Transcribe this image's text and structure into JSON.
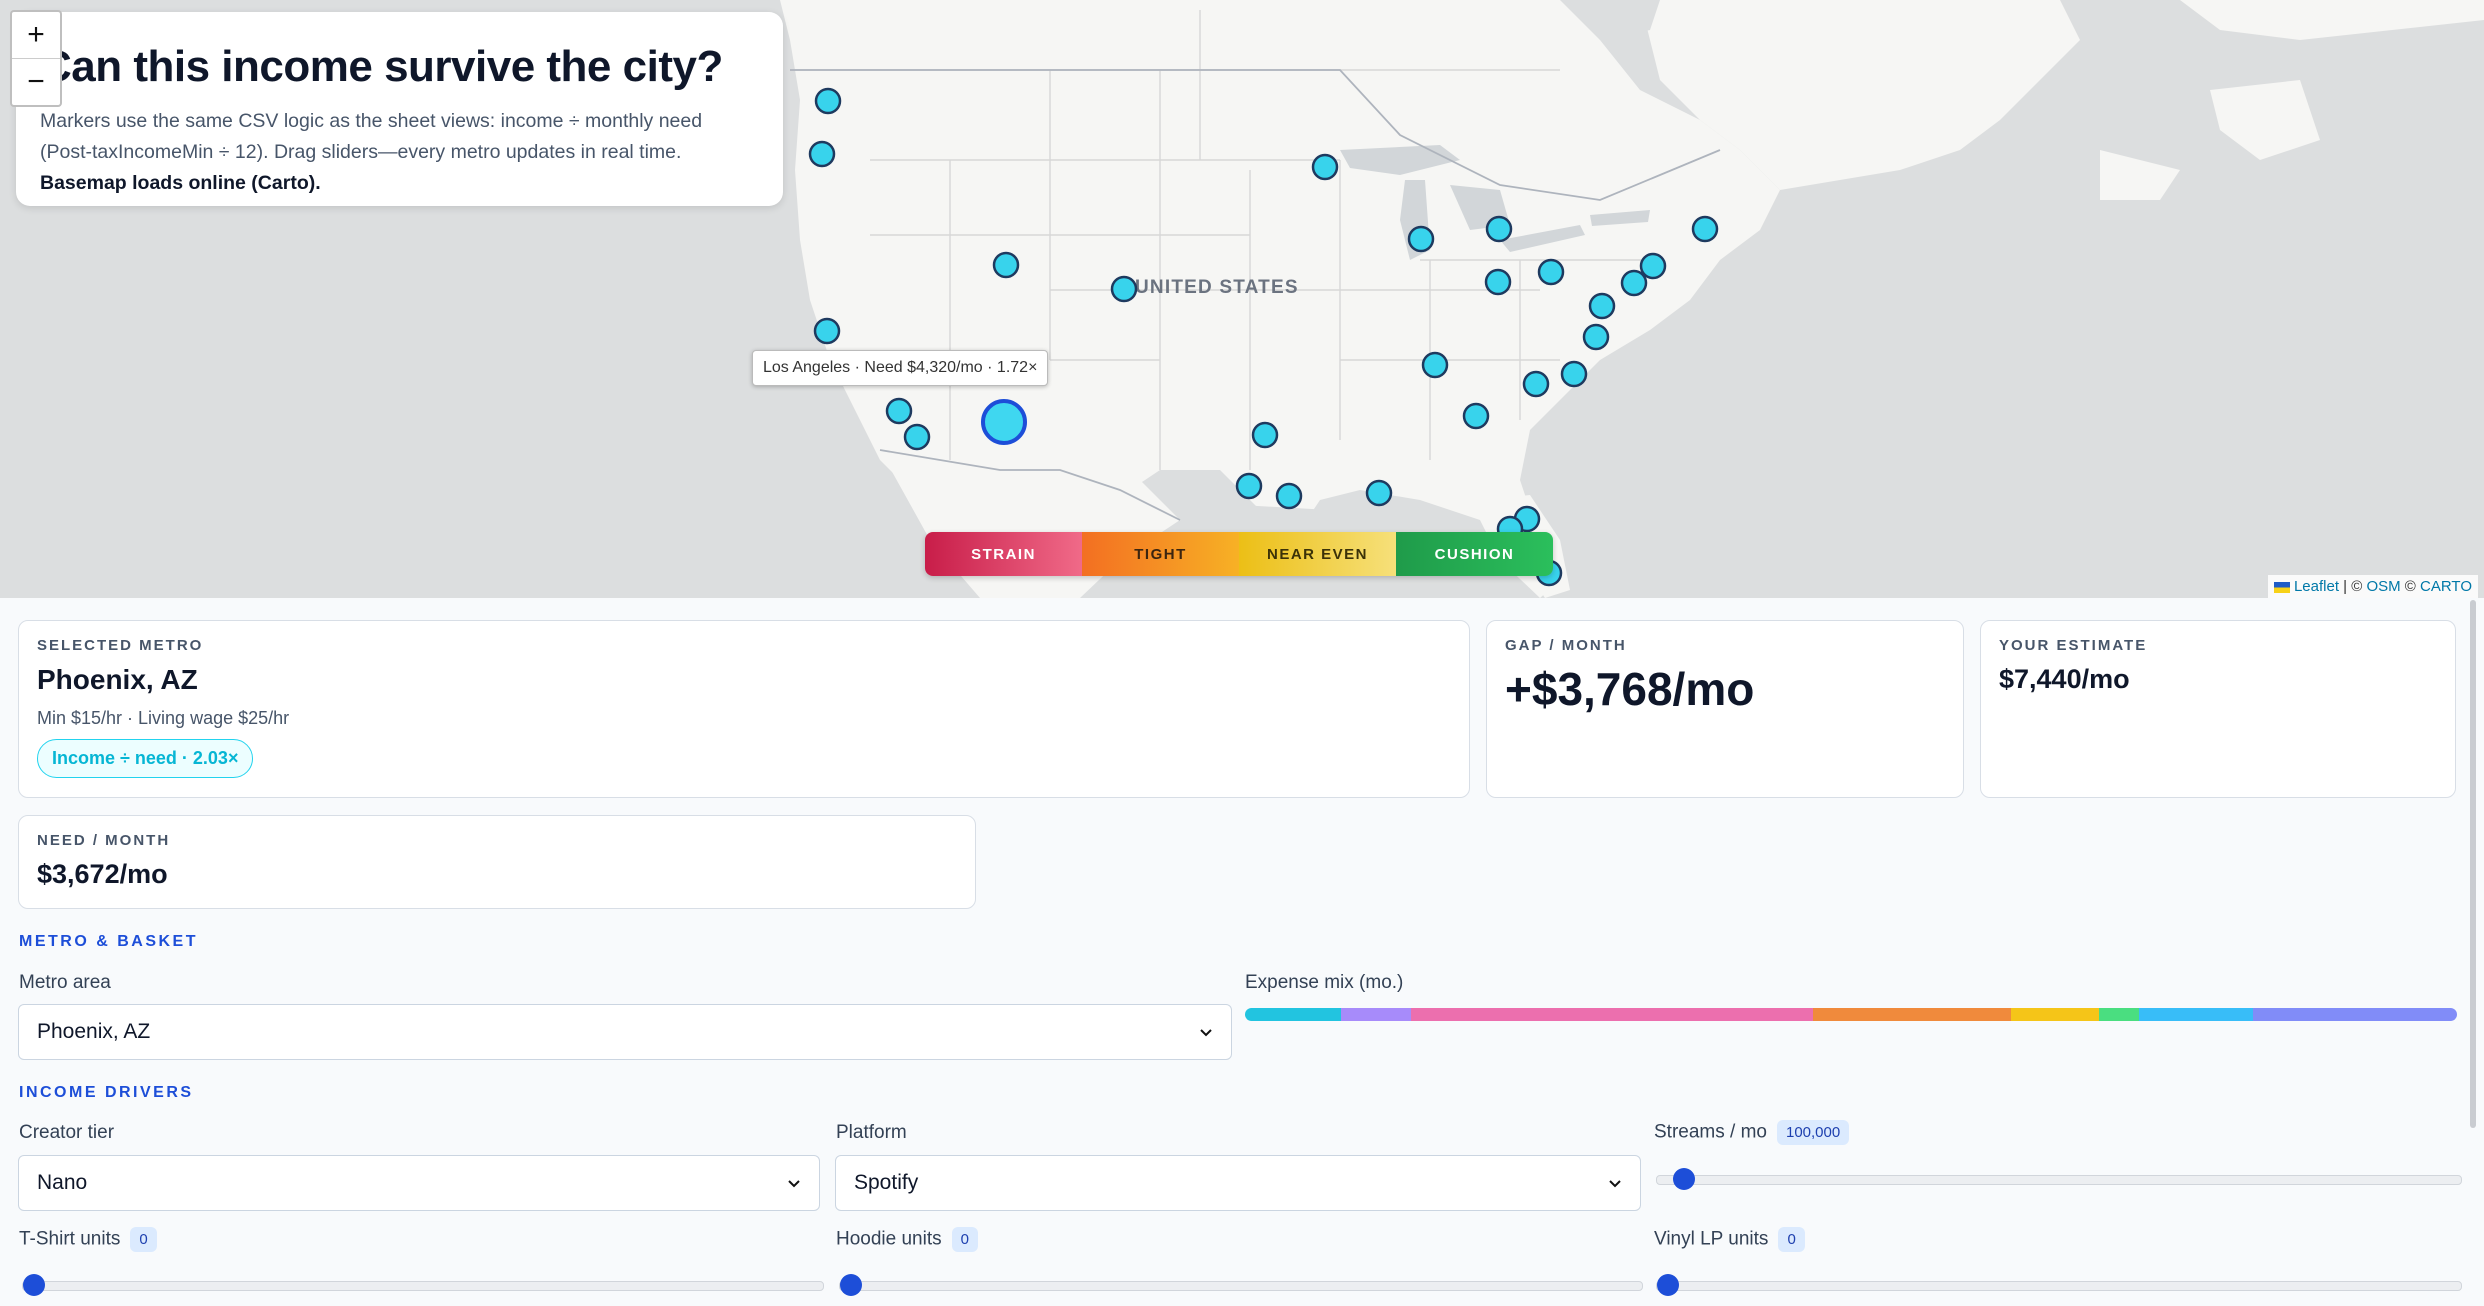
{
  "map": {
    "zoom_in": "+",
    "zoom_out": "−",
    "country_label": "UNITED STATES",
    "tooltip": "Los Angeles · Need $4,320/mo · 1.72×",
    "attribution": {
      "leaflet": "Leaflet",
      "osm": "OSM",
      "carto": "CARTO"
    },
    "marker_color": "#38d3ec",
    "marker_stroke": "#1e3a5f",
    "selected_marker": "Phoenix, AZ"
  },
  "title_card": {
    "title": "Can this income survive the city?",
    "desc_plain": "Markers use the same CSV logic as the sheet views: income ÷ monthly need (Post-taxIncomeMin ÷ 12). Drag sliders—every metro updates in real time. ",
    "desc_bold": "Basemap loads online (Carto)."
  },
  "legend": [
    {
      "label": "STRAIN",
      "color": "#d6224e"
    },
    {
      "label": "TIGHT",
      "color": "#f27b22"
    },
    {
      "label": "NEAR EVEN",
      "color": "#f0c21c"
    },
    {
      "label": "CUSHION",
      "color": "#21a84f"
    }
  ],
  "selected_metro": {
    "label": "SELECTED METRO",
    "name": "Phoenix, AZ",
    "wages": "Min $15/hr · Living wage $25/hr",
    "ratio_pill": "Income ÷ need · 2.03×"
  },
  "gap": {
    "label": "GAP / MONTH",
    "value": "+$3,768/mo"
  },
  "estimate": {
    "label": "YOUR ESTIMATE",
    "value": "$7,440/mo"
  },
  "need": {
    "label": "NEED / MONTH",
    "value": "$3,672/mo"
  },
  "metro_basket": {
    "section": "METRO & BASKET",
    "metro_label": "Metro area",
    "metro_value": "Phoenix, AZ",
    "expense_label": "Expense mix (mo.)",
    "expense_mix": [
      {
        "color": "#22c4e0",
        "share": 0.079
      },
      {
        "color": "#a78bfa",
        "share": 0.058
      },
      {
        "color": "#ec6fae",
        "share": 0.332
      },
      {
        "color": "#f08a3c",
        "share": 0.163
      },
      {
        "color": "#f5c518",
        "share": 0.073
      },
      {
        "color": "#4ade80",
        "share": 0.033
      },
      {
        "color": "#38bdf8",
        "share": 0.094
      },
      {
        "color": "#818cf8",
        "share": 0.168
      }
    ]
  },
  "income": {
    "section": "INCOME DRIVERS",
    "tier_label": "Creator tier",
    "tier_value": "Nano",
    "platform_label": "Platform",
    "platform_value": "Spotify",
    "streams_label": "Streams / mo",
    "streams_value": "100,000",
    "streams_level": 0.02,
    "tshirt_label": "T-Shirt units",
    "tshirt_value": "0",
    "hoodie_label": "Hoodie units",
    "hoodie_value": "0",
    "vinyl_label": "Vinyl LP units",
    "vinyl_value": "0"
  }
}
